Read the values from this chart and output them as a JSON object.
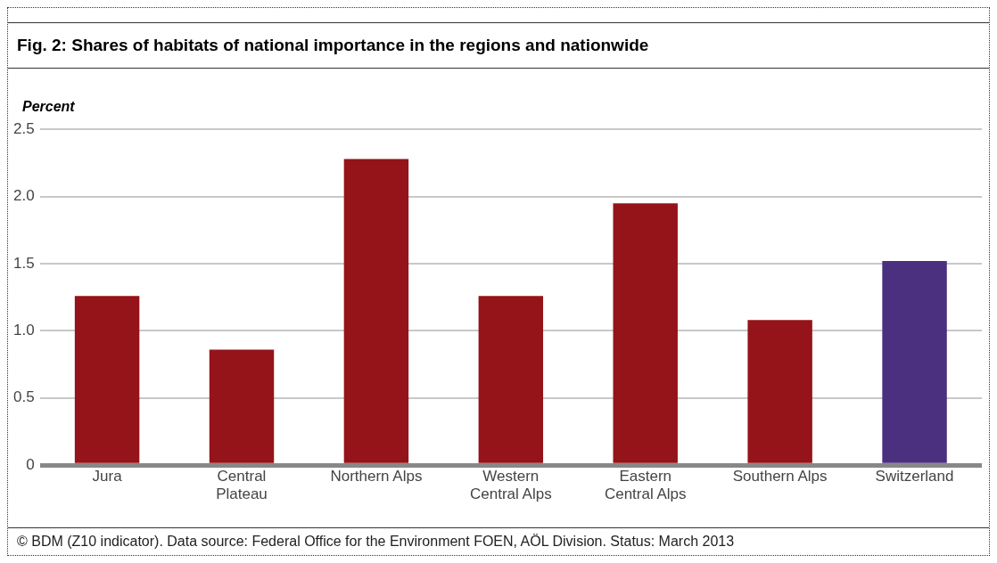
{
  "chart_data": {
    "type": "bar",
    "title": "Fig. 2: Shares of habitats of national importance in the regions and nationwide",
    "ylabel": "Percent",
    "categories": [
      "Jura",
      "Central Plateau",
      "Northern Alps",
      "Western Central Alps",
      "Eastern Central Alps",
      "Southern Alps",
      "Switzerland"
    ],
    "values": [
      1.26,
      0.86,
      2.28,
      1.26,
      1.95,
      1.08,
      1.52
    ],
    "colors": [
      "#941419",
      "#941419",
      "#941419",
      "#941419",
      "#941419",
      "#941419",
      "#4b3080"
    ],
    "ylim": [
      0,
      2.5
    ],
    "yticks": [
      0,
      0.5,
      {
        "value": 1,
        "label": "1.0"
      },
      1.5,
      {
        "value": 2,
        "label": "2.0"
      },
      2.5
    ],
    "grid": "y",
    "legend": false,
    "annotations": [
      "©  BDM (Z10 indicator). Data source: Federal Office for the Environment FOEN, AÖL Division. Status: March 2013"
    ]
  }
}
